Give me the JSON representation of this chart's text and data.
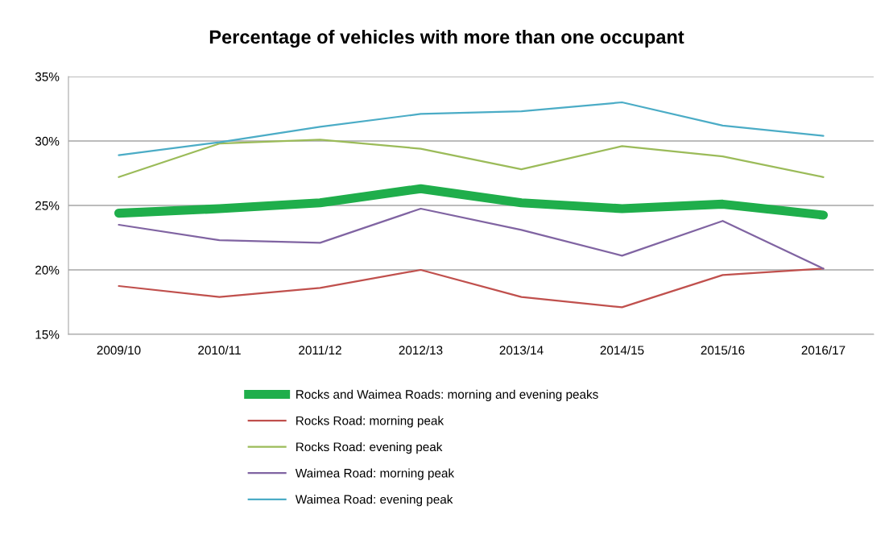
{
  "chart_data": {
    "type": "line",
    "title": "Percentage of vehicles with more than one occupant",
    "categories": [
      "2009/10",
      "2010/11",
      "2011/12",
      "2012/13",
      "2013/14",
      "2014/15",
      "2015/16",
      "2016/17"
    ],
    "series": [
      {
        "name": "Rocks and Waimea Roads: morning and evening peaks",
        "color": "#1fae4b",
        "values": [
          24.4,
          24.75,
          25.2,
          26.3,
          25.2,
          24.75,
          25.1,
          24.25
        ]
      },
      {
        "name": "Rocks Road: morning peak",
        "color": "#c0504d",
        "values": [
          18.75,
          17.9,
          18.6,
          20.0,
          17.9,
          17.1,
          19.6,
          20.1
        ]
      },
      {
        "name": "Rocks Road: evening peak",
        "color": "#9bbb59",
        "values": [
          27.2,
          29.8,
          30.1,
          29.4,
          27.8,
          29.6,
          28.8,
          27.2
        ]
      },
      {
        "name": "Waimea Road: morning peak",
        "color": "#8064a2",
        "values": [
          23.5,
          22.3,
          22.1,
          24.75,
          23.1,
          21.1,
          23.8,
          20.1
        ]
      },
      {
        "name": "Waimea Road: evening peak",
        "color": "#4bacc6",
        "values": [
          28.9,
          29.9,
          31.1,
          32.1,
          32.3,
          33.0,
          31.2,
          30.4
        ]
      }
    ],
    "ylim": [
      15,
      35
    ],
    "yticks": [
      {
        "value": 15,
        "label": "15%"
      },
      {
        "value": 20,
        "label": "20%"
      },
      {
        "value": 25,
        "label": "25%"
      },
      {
        "value": 30,
        "label": "30%"
      },
      {
        "value": 35,
        "label": "35%"
      }
    ],
    "grid": "y",
    "legend": "bottom",
    "marker": "none",
    "line_style": "solid"
  }
}
